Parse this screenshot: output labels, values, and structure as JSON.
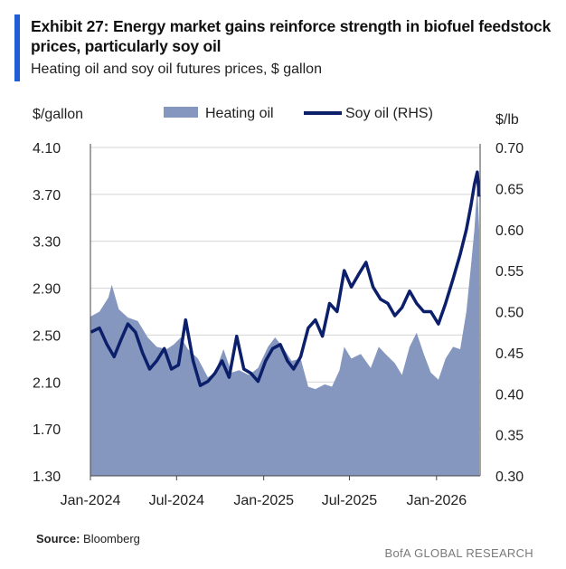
{
  "header": {
    "title": "Exhibit 27: Energy market gains reinforce strength in biofuel feedstock prices, particularly soy oil",
    "subtitle": "Heating oil and soy oil futures prices, $ gallon"
  },
  "footer": {
    "source_label": "Source:",
    "source_value": "Bloomberg",
    "brand": "BofA GLOBAL RESEARCH"
  },
  "colors": {
    "heating_oil_fill": "#8597bf",
    "soy_oil_line": "#0b1f6b",
    "accent": "#1f5fd6"
  },
  "chart_data": {
    "type": "area+line",
    "title": "Exhibit 27: Energy market gains reinforce strength in biofuel feedstock prices, particularly soy oil",
    "subtitle": "Heating oil and soy oil futures prices, $ gallon",
    "ylabel_left": "$/gallon",
    "ylabel_right": "$/lb",
    "ylim_left": [
      1.3,
      4.1
    ],
    "ylim_right": [
      0.3,
      0.7
    ],
    "yticks_left": [
      "4.10",
      "3.70",
      "3.30",
      "2.90",
      "2.50",
      "2.10",
      "1.70",
      "1.30"
    ],
    "yticks_right": [
      "0.70",
      "0.65",
      "0.60",
      "0.55",
      "0.50",
      "0.45",
      "0.40",
      "0.35",
      "0.30"
    ],
    "xticks": [
      "Jan-2024",
      "Jul-2024",
      "Jan-2025",
      "Jul-2025",
      "Jan-2026"
    ],
    "legend_placement": "top",
    "grid": "horizontal",
    "series": [
      {
        "name": "Heating oil",
        "kind": "area",
        "axis": "left",
        "points": [
          [
            "2024-01-02",
            2.66
          ],
          [
            "2024-01-20",
            2.7
          ],
          [
            "2024-02-08",
            2.82
          ],
          [
            "2024-02-15",
            2.93
          ],
          [
            "2024-03-01",
            2.72
          ],
          [
            "2024-03-20",
            2.65
          ],
          [
            "2024-04-10",
            2.62
          ],
          [
            "2024-05-01",
            2.48
          ],
          [
            "2024-05-20",
            2.4
          ],
          [
            "2024-06-10",
            2.38
          ],
          [
            "2024-06-25",
            2.42
          ],
          [
            "2024-07-10",
            2.48
          ],
          [
            "2024-07-25",
            2.38
          ],
          [
            "2024-08-15",
            2.3
          ],
          [
            "2024-09-05",
            2.14
          ],
          [
            "2024-09-20",
            2.18
          ],
          [
            "2024-10-08",
            2.38
          ],
          [
            "2024-10-25",
            2.18
          ],
          [
            "2024-11-10",
            2.2
          ],
          [
            "2024-12-01",
            2.16
          ],
          [
            "2024-12-20",
            2.22
          ],
          [
            "2025-01-10",
            2.4
          ],
          [
            "2025-01-25",
            2.48
          ],
          [
            "2025-02-10",
            2.4
          ],
          [
            "2025-03-01",
            2.28
          ],
          [
            "2025-03-20",
            2.3
          ],
          [
            "2025-04-05",
            2.06
          ],
          [
            "2025-04-20",
            2.04
          ],
          [
            "2025-05-10",
            2.08
          ],
          [
            "2025-05-25",
            2.06
          ],
          [
            "2025-06-10",
            2.2
          ],
          [
            "2025-06-20",
            2.4
          ],
          [
            "2025-07-05",
            2.3
          ],
          [
            "2025-07-25",
            2.34
          ],
          [
            "2025-08-15",
            2.22
          ],
          [
            "2025-09-01",
            2.4
          ],
          [
            "2025-09-15",
            2.34
          ],
          [
            "2025-10-05",
            2.26
          ],
          [
            "2025-10-20",
            2.16
          ],
          [
            "2025-11-05",
            2.4
          ],
          [
            "2025-11-20",
            2.52
          ],
          [
            "2025-12-05",
            2.34
          ],
          [
            "2025-12-20",
            2.18
          ],
          [
            "2026-01-05",
            2.12
          ],
          [
            "2026-01-20",
            2.3
          ],
          [
            "2026-02-05",
            2.4
          ],
          [
            "2026-02-20",
            2.38
          ],
          [
            "2026-03-05",
            2.7
          ],
          [
            "2026-03-15",
            3.1
          ],
          [
            "2026-03-22",
            3.4
          ],
          [
            "2026-03-28",
            3.78
          ],
          [
            "2026-04-01",
            3.4
          ]
        ]
      },
      {
        "name": "Soy oil (RHS)",
        "kind": "line",
        "axis": "right",
        "points": [
          [
            "2024-01-02",
            0.475
          ],
          [
            "2024-01-20",
            0.48
          ],
          [
            "2024-02-05",
            0.46
          ],
          [
            "2024-02-20",
            0.445
          ],
          [
            "2024-03-05",
            0.465
          ],
          [
            "2024-03-20",
            0.485
          ],
          [
            "2024-04-05",
            0.475
          ],
          [
            "2024-04-20",
            0.45
          ],
          [
            "2024-05-05",
            0.43
          ],
          [
            "2024-05-20",
            0.44
          ],
          [
            "2024-06-05",
            0.455
          ],
          [
            "2024-06-20",
            0.43
          ],
          [
            "2024-07-05",
            0.435
          ],
          [
            "2024-07-20",
            0.49
          ],
          [
            "2024-08-05",
            0.44
          ],
          [
            "2024-08-20",
            0.41
          ],
          [
            "2024-09-05",
            0.415
          ],
          [
            "2024-09-20",
            0.425
          ],
          [
            "2024-10-05",
            0.44
          ],
          [
            "2024-10-20",
            0.42
          ],
          [
            "2024-11-05",
            0.47
          ],
          [
            "2024-11-20",
            0.43
          ],
          [
            "2024-12-05",
            0.425
          ],
          [
            "2024-12-20",
            0.415
          ],
          [
            "2025-01-05",
            0.44
          ],
          [
            "2025-01-20",
            0.455
          ],
          [
            "2025-02-05",
            0.46
          ],
          [
            "2025-02-20",
            0.44
          ],
          [
            "2025-03-05",
            0.43
          ],
          [
            "2025-03-20",
            0.445
          ],
          [
            "2025-04-05",
            0.48
          ],
          [
            "2025-04-20",
            0.49
          ],
          [
            "2025-05-05",
            0.47
          ],
          [
            "2025-05-20",
            0.51
          ],
          [
            "2025-06-05",
            0.5
          ],
          [
            "2025-06-20",
            0.55
          ],
          [
            "2025-07-05",
            0.53
          ],
          [
            "2025-07-20",
            0.545
          ],
          [
            "2025-08-05",
            0.56
          ],
          [
            "2025-08-20",
            0.53
          ],
          [
            "2025-09-05",
            0.515
          ],
          [
            "2025-09-20",
            0.51
          ],
          [
            "2025-10-05",
            0.495
          ],
          [
            "2025-10-20",
            0.505
          ],
          [
            "2025-11-05",
            0.525
          ],
          [
            "2025-11-20",
            0.51
          ],
          [
            "2025-12-05",
            0.5
          ],
          [
            "2025-12-20",
            0.5
          ],
          [
            "2026-01-05",
            0.485
          ],
          [
            "2026-01-20",
            0.51
          ],
          [
            "2026-02-05",
            0.54
          ],
          [
            "2026-02-20",
            0.57
          ],
          [
            "2026-03-05",
            0.6
          ],
          [
            "2026-03-15",
            0.63
          ],
          [
            "2026-03-22",
            0.655
          ],
          [
            "2026-03-28",
            0.67
          ],
          [
            "2026-04-01",
            0.64
          ]
        ]
      }
    ]
  }
}
